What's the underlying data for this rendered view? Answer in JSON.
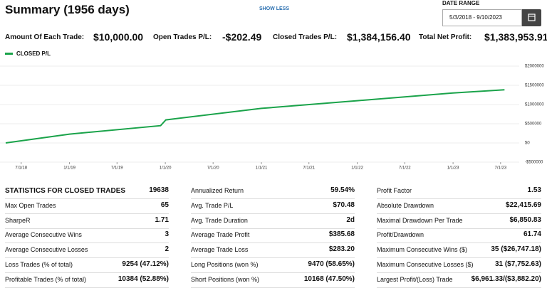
{
  "header": {
    "title": "Summary (1956 days)",
    "toggle": "SHOW LESS",
    "date_range_label": "DATE RANGE",
    "date_range": "5/3/2018 - 9/10/2023"
  },
  "summary": [
    {
      "label": "Amount Of Each Trade:",
      "value": "$10,000.00"
    },
    {
      "label": "Open Trades P/L:",
      "value": "-$202.49"
    },
    {
      "label": "Closed Trades P/L:",
      "value": "$1,384,156.40"
    },
    {
      "label": "Total Net Profit:",
      "value": "$1,383,953.91"
    }
  ],
  "chart_data": {
    "type": "line",
    "series": [
      {
        "name": "CLOSED P/L",
        "color": "#1aa34a",
        "x": [
          0,
          243,
          590,
          610,
          974,
          1339,
          1704,
          1900
        ],
        "values": [
          0,
          230000,
          450000,
          600000,
          900000,
          1100000,
          1300000,
          1384156
        ]
      }
    ],
    "xlim": [
      0,
      1956
    ],
    "xticks": [
      {
        "value": 59,
        "label": "7/1/18"
      },
      {
        "value": 243,
        "label": "1/1/19"
      },
      {
        "value": 424,
        "label": "7/1/19"
      },
      {
        "value": 608,
        "label": "1/1/20"
      },
      {
        "value": 790,
        "label": "7/1/20"
      },
      {
        "value": 974,
        "label": "1/1/21"
      },
      {
        "value": 1155,
        "label": "7/1/21"
      },
      {
        "value": 1339,
        "label": "1/1/22"
      },
      {
        "value": 1520,
        "label": "7/1/22"
      },
      {
        "value": 1704,
        "label": "1/1/23"
      },
      {
        "value": 1885,
        "label": "7/1/23"
      }
    ],
    "ylim": [
      -500000,
      2000000
    ],
    "yticks": [
      {
        "value": 2000000,
        "label": "$2000000"
      },
      {
        "value": 1500000,
        "label": "$1500000"
      },
      {
        "value": 1000000,
        "label": "$1000000"
      },
      {
        "value": 500000,
        "label": "$500000"
      },
      {
        "value": 0,
        "label": "$0"
      },
      {
        "value": -500000,
        "label": "-$500000"
      }
    ],
    "grid": true
  },
  "stats": [
    [
      [
        "STATISTICS FOR CLOSED TRADES",
        "19638"
      ],
      [
        "Max Open Trades",
        "65"
      ],
      [
        "SharpeR",
        "1.71"
      ],
      [
        "Average Consecutive Wins",
        "3"
      ],
      [
        "Average Consecutive Losses",
        "2"
      ],
      [
        "Loss Trades (% of total)",
        "9254 (47.12%)"
      ],
      [
        "Profitable Trades (% of total)",
        "10384 (52.88%)"
      ]
    ],
    [
      [
        "Annualized Return",
        "59.54%"
      ],
      [
        "Avg. Trade P/L",
        "$70.48"
      ],
      [
        "Avg. Trade Duration",
        "2d"
      ],
      [
        "Average Trade Profit",
        "$385.68"
      ],
      [
        "Average Trade Loss",
        "$283.20"
      ],
      [
        "Long Positions (won %)",
        "9470 (58.65%)"
      ],
      [
        "Short Positions (won %)",
        "10168 (47.50%)"
      ]
    ],
    [
      [
        "Profit Factor",
        "1.53"
      ],
      [
        "Absolute Drawdown",
        "$22,415.69"
      ],
      [
        "Maximal Drawdown Per Trade",
        "$6,850.83"
      ],
      [
        "Profit/Drawdown",
        "61.74"
      ],
      [
        "Maximum Consecutive Wins ($)",
        "35 ($26,747.18)"
      ],
      [
        "Maximum Consecutive Losses ($)",
        "31 ($7,752.63)"
      ],
      [
        "Largest Profit/(Loss) Trade",
        "$6,961.33/($3,882.20)"
      ]
    ]
  ]
}
